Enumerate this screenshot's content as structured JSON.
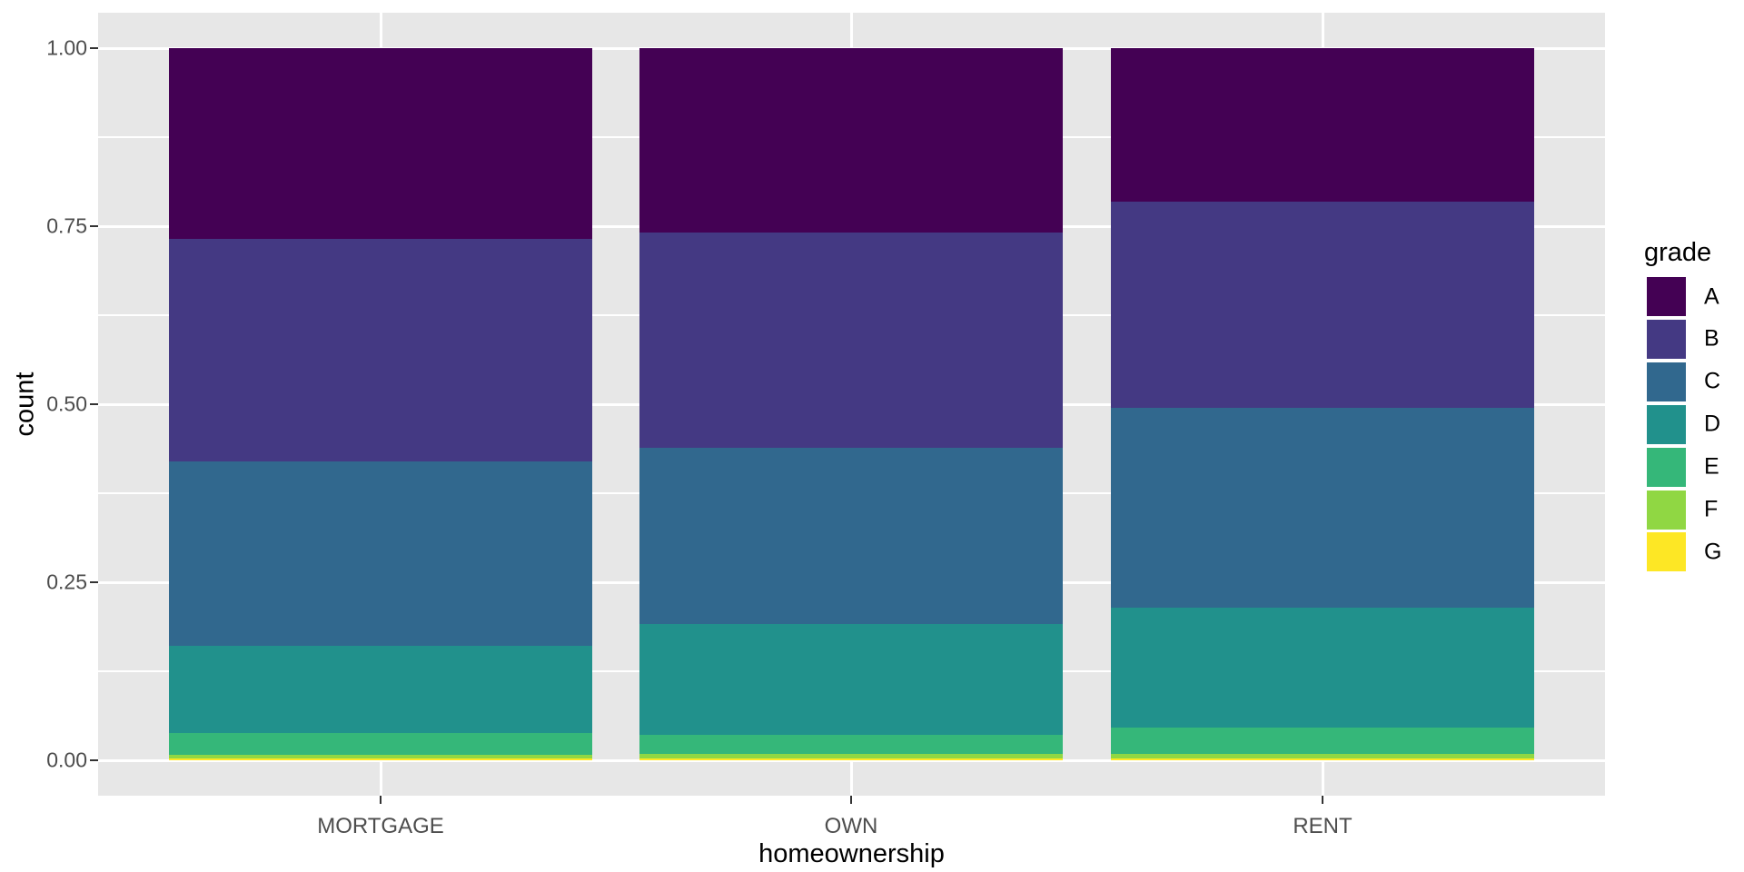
{
  "chart_data": {
    "type": "bar",
    "subtype": "stacked_fill_proportion",
    "title": "",
    "xlabel": "homeownership",
    "ylabel": "count",
    "categories": [
      "MORTGAGE",
      "OWN",
      "RENT"
    ],
    "ylim": [
      0,
      1
    ],
    "y_tick_values": [
      0.0,
      0.25,
      0.5,
      0.75,
      1.0
    ],
    "y_tick_labels": [
      "0.00",
      "0.25",
      "0.50",
      "0.75",
      "1.00"
    ],
    "y_minor_tick_values": [
      0.125,
      0.375,
      0.625,
      0.875
    ],
    "grid": true,
    "stack_order_bottom_to_top": [
      "G",
      "F",
      "E",
      "D",
      "C",
      "B",
      "A"
    ],
    "series": [
      {
        "name": "A",
        "color": "#440154",
        "values": [
          0.268,
          0.259,
          0.215
        ]
      },
      {
        "name": "B",
        "color": "#443983",
        "values": [
          0.312,
          0.302,
          0.29
        ]
      },
      {
        "name": "C",
        "color": "#31688E",
        "values": [
          0.259,
          0.248,
          0.281
        ]
      },
      {
        "name": "D",
        "color": "#21918C",
        "values": [
          0.123,
          0.155,
          0.168
        ]
      },
      {
        "name": "E",
        "color": "#35B779",
        "values": [
          0.03,
          0.027,
          0.037
        ]
      },
      {
        "name": "F",
        "color": "#90D743",
        "values": [
          0.005,
          0.006,
          0.006
        ]
      },
      {
        "name": "G",
        "color": "#FDE725",
        "values": [
          0.003,
          0.003,
          0.003
        ]
      }
    ],
    "legend": {
      "title": "grade",
      "position": "right",
      "entries": [
        "A",
        "B",
        "C",
        "D",
        "E",
        "F",
        "G"
      ]
    },
    "colors": {
      "panel_background": "#E7E7E7",
      "gridline": "#FFFFFF",
      "axis_text": "#4D4D4D",
      "axis_title": "#000000",
      "tick_mark": "#333333"
    }
  }
}
